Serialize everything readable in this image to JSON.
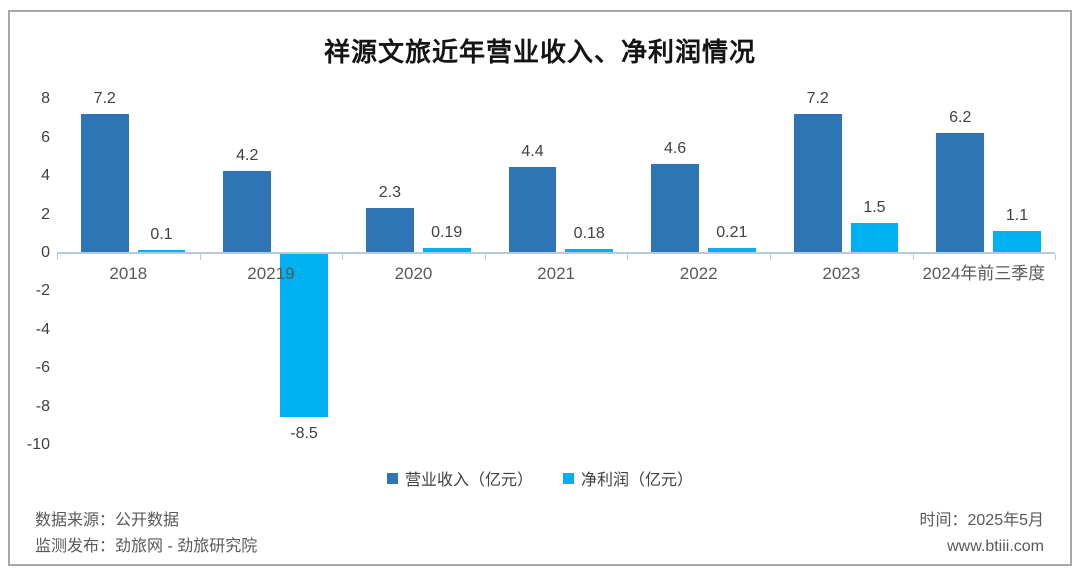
{
  "title": "祥源文旅近年营业收入、净利润情况",
  "chart_data": {
    "type": "bar",
    "title": "祥源文旅近年营业收入、净利润情况",
    "categories": [
      "2018",
      "20219",
      "2020",
      "2021",
      "2022",
      "2023",
      "2024年前三季度"
    ],
    "series": [
      {
        "name": "营业收入（亿元）",
        "color": "#2e75b6",
        "values": [
          7.2,
          4.2,
          2.3,
          4.4,
          4.6,
          7.2,
          6.2
        ]
      },
      {
        "name": "净利润（亿元）",
        "color": "#00b0f0",
        "values": [
          0.1,
          -8.5,
          0.19,
          0.18,
          0.21,
          1.5,
          1.1
        ]
      }
    ],
    "y_ticks": [
      8,
      6,
      4,
      2,
      0,
      -2,
      -4,
      -6,
      -8,
      -10
    ],
    "ylim": [
      -10,
      8
    ],
    "xlabel": "",
    "ylabel": "",
    "grid": false,
    "legend_position": "bottom",
    "axis_color": "#b6c9de"
  },
  "legend": {
    "items": [
      {
        "label": "营业收入（亿元）",
        "color": "#2e75b6"
      },
      {
        "label": "净利润（亿元）",
        "color": "#00b0f0"
      }
    ]
  },
  "footer": {
    "source": "数据来源：公开数据",
    "publisher": "监测发布：劲旅网 - 劲旅研究院",
    "time": "时间：2025年5月",
    "website": "www.btiii.com"
  }
}
